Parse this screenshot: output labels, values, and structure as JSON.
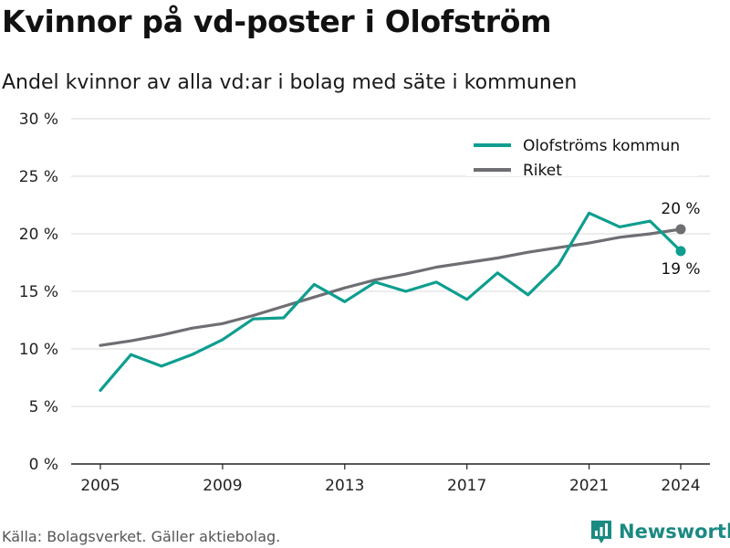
{
  "title": "Kvinnor på vd-poster i Olofström",
  "subtitle": "Andel kvinnor av alla vd:ar i bolag med säte i kommunen",
  "source": "Källa: Bolagsverket. Gäller aktiebolag.",
  "brand": "Newsworthy",
  "colors": {
    "olofstrom": "#0e9e8f",
    "riket": "#6e6e73",
    "grid": "#d9d9d9",
    "axis": "#222222",
    "brand": "#1a8a82"
  },
  "chart_data": {
    "type": "line",
    "x": [
      2005,
      2006,
      2007,
      2008,
      2009,
      2010,
      2011,
      2012,
      2013,
      2014,
      2015,
      2016,
      2017,
      2018,
      2019,
      2020,
      2021,
      2022,
      2023,
      2024
    ],
    "series": [
      {
        "name": "Olofströms kommun",
        "values": [
          6.4,
          9.5,
          8.5,
          9.5,
          10.8,
          12.6,
          12.7,
          15.6,
          14.1,
          15.8,
          15.0,
          15.8,
          14.3,
          16.6,
          14.7,
          17.3,
          21.8,
          20.6,
          21.1,
          18.5
        ]
      },
      {
        "name": "Riket",
        "values": [
          10.3,
          10.7,
          11.2,
          11.8,
          12.2,
          12.9,
          13.7,
          14.5,
          15.3,
          16.0,
          16.5,
          17.1,
          17.5,
          17.9,
          18.4,
          18.8,
          19.2,
          19.7,
          20.0,
          20.4
        ]
      }
    ],
    "ylim": [
      0,
      30
    ],
    "yticks": [
      0,
      5,
      10,
      15,
      20,
      25,
      30
    ],
    "ytick_labels": [
      "0 %",
      "5 %",
      "10 %",
      "15 %",
      "20 %",
      "25 %",
      "30 %"
    ],
    "xticks": [
      2005,
      2009,
      2013,
      2017,
      2021,
      2024
    ],
    "xtick_labels": [
      "2005",
      "2009",
      "2013",
      "2017",
      "2021",
      "2024"
    ],
    "end_labels": {
      "riket": "20 %",
      "olofstrom": "19 %"
    },
    "legend_position": "top-right",
    "xlabel": "",
    "ylabel": ""
  }
}
